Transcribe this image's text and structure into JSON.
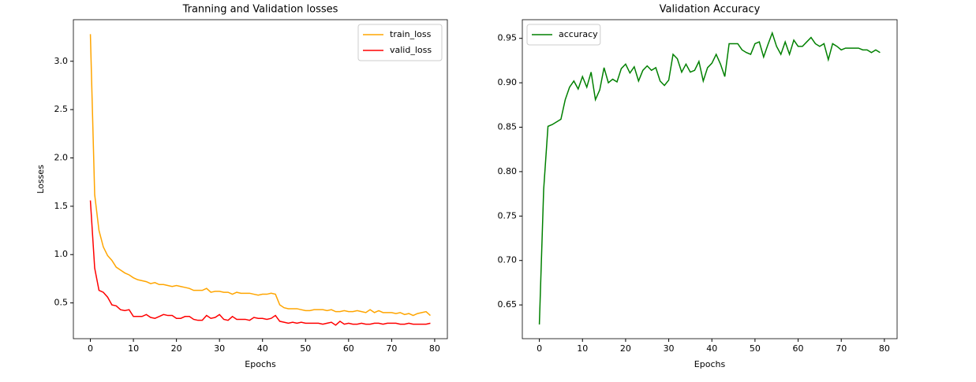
{
  "chart_data": [
    {
      "type": "line",
      "title": "Tranning and Validation losses",
      "xlabel": "Epochs",
      "ylabel": "Losses",
      "x": [
        0,
        1,
        2,
        3,
        4,
        5,
        6,
        7,
        8,
        9,
        10,
        11,
        12,
        13,
        14,
        15,
        16,
        17,
        18,
        19,
        20,
        21,
        22,
        23,
        24,
        25,
        26,
        27,
        28,
        29,
        30,
        31,
        32,
        33,
        34,
        35,
        36,
        37,
        38,
        39,
        40,
        41,
        42,
        43,
        44,
        45,
        46,
        47,
        48,
        49,
        50,
        51,
        52,
        53,
        54,
        55,
        56,
        57,
        58,
        59,
        60,
        61,
        62,
        63,
        64,
        65,
        66,
        67,
        68,
        69,
        70,
        71,
        72,
        73,
        74,
        75,
        76,
        77,
        78,
        79
      ],
      "series": [
        {
          "name": "train_loss",
          "color": "#ffa500",
          "values": [
            3.28,
            1.62,
            1.25,
            1.08,
            0.99,
            0.94,
            0.87,
            0.84,
            0.81,
            0.79,
            0.76,
            0.74,
            0.73,
            0.72,
            0.7,
            0.71,
            0.69,
            0.69,
            0.68,
            0.67,
            0.68,
            0.67,
            0.66,
            0.65,
            0.63,
            0.63,
            0.63,
            0.65,
            0.61,
            0.62,
            0.62,
            0.61,
            0.61,
            0.59,
            0.61,
            0.6,
            0.6,
            0.6,
            0.59,
            0.58,
            0.59,
            0.59,
            0.6,
            0.59,
            0.48,
            0.45,
            0.44,
            0.44,
            0.44,
            0.43,
            0.42,
            0.42,
            0.43,
            0.43,
            0.43,
            0.42,
            0.43,
            0.41,
            0.41,
            0.42,
            0.41,
            0.41,
            0.42,
            0.41,
            0.4,
            0.43,
            0.4,
            0.42,
            0.4,
            0.4,
            0.4,
            0.39,
            0.4,
            0.38,
            0.39,
            0.37,
            0.39,
            0.4,
            0.41,
            0.37
          ]
        },
        {
          "name": "valid_loss",
          "color": "#ff0000",
          "values": [
            1.56,
            0.86,
            0.63,
            0.61,
            0.56,
            0.48,
            0.47,
            0.43,
            0.42,
            0.43,
            0.36,
            0.36,
            0.36,
            0.38,
            0.35,
            0.34,
            0.36,
            0.38,
            0.37,
            0.37,
            0.34,
            0.34,
            0.36,
            0.36,
            0.33,
            0.32,
            0.32,
            0.37,
            0.34,
            0.35,
            0.38,
            0.33,
            0.32,
            0.36,
            0.33,
            0.33,
            0.33,
            0.32,
            0.35,
            0.34,
            0.34,
            0.33,
            0.34,
            0.37,
            0.31,
            0.3,
            0.29,
            0.3,
            0.29,
            0.3,
            0.29,
            0.29,
            0.29,
            0.29,
            0.28,
            0.29,
            0.3,
            0.27,
            0.31,
            0.28,
            0.29,
            0.28,
            0.28,
            0.29,
            0.28,
            0.28,
            0.29,
            0.29,
            0.28,
            0.29,
            0.29,
            0.29,
            0.28,
            0.28,
            0.29,
            0.28,
            0.28,
            0.28,
            0.28,
            0.29
          ]
        }
      ],
      "xlim": [
        -3.95,
        82.95
      ],
      "xticks": [
        0,
        10,
        20,
        30,
        40,
        50,
        60,
        70,
        80
      ],
      "ylim": [
        0.13,
        3.43
      ],
      "yticks": [
        0.5,
        {
          "value": 1,
          "label": "1.0"
        },
        1.5,
        {
          "value": 2,
          "label": "2.0"
        },
        2.5,
        {
          "value": 3,
          "label": "3.0"
        }
      ],
      "legend": "upper right"
    },
    {
      "type": "line",
      "title": "Validation Accuracy",
      "xlabel": "Epochs",
      "x": [
        0,
        1,
        2,
        3,
        4,
        5,
        6,
        7,
        8,
        9,
        10,
        11,
        12,
        13,
        14,
        15,
        16,
        17,
        18,
        19,
        20,
        21,
        22,
        23,
        24,
        25,
        26,
        27,
        28,
        29,
        30,
        31,
        32,
        33,
        34,
        35,
        36,
        37,
        38,
        39,
        40,
        41,
        42,
        43,
        44,
        45,
        46,
        47,
        48,
        49,
        50,
        51,
        52,
        53,
        54,
        55,
        56,
        57,
        58,
        59,
        60,
        61,
        62,
        63,
        64,
        65,
        66,
        67,
        68,
        69,
        70,
        71,
        72,
        73,
        74,
        75,
        76,
        77,
        78,
        79
      ],
      "series": [
        {
          "name": "accuracy",
          "color": "#008000",
          "values": [
            0.628,
            0.78,
            0.851,
            0.853,
            0.856,
            0.859,
            0.881,
            0.895,
            0.902,
            0.893,
            0.907,
            0.895,
            0.912,
            0.881,
            0.892,
            0.917,
            0.9,
            0.904,
            0.901,
            0.916,
            0.921,
            0.911,
            0.918,
            0.902,
            0.914,
            0.919,
            0.914,
            0.917,
            0.902,
            0.897,
            0.903,
            0.932,
            0.927,
            0.912,
            0.921,
            0.912,
            0.914,
            0.924,
            0.902,
            0.917,
            0.922,
            0.932,
            0.921,
            0.907,
            0.944,
            0.944,
            0.944,
            0.937,
            0.934,
            0.932,
            0.944,
            0.946,
            0.929,
            0.943,
            0.956,
            0.941,
            0.932,
            0.946,
            0.932,
            0.948,
            0.941,
            0.941,
            0.946,
            0.951,
            0.944,
            0.941,
            0.944,
            0.926,
            0.944,
            0.941,
            0.937,
            0.939,
            0.939,
            0.939,
            0.939,
            0.937,
            0.937,
            0.934,
            0.937,
            0.934
          ]
        }
      ],
      "xlim": [
        -3.95,
        82.95
      ],
      "xticks": [
        0,
        10,
        20,
        30,
        40,
        50,
        60,
        70,
        80
      ],
      "ylim": [
        0.612,
        0.971
      ],
      "yticks": [
        0.65,
        {
          "value": 0.7,
          "label": "0.70"
        },
        0.75,
        {
          "value": 0.8,
          "label": "0.80"
        },
        0.85,
        {
          "value": 0.9,
          "label": "0.90"
        },
        0.95
      ],
      "legend": "upper left"
    }
  ]
}
